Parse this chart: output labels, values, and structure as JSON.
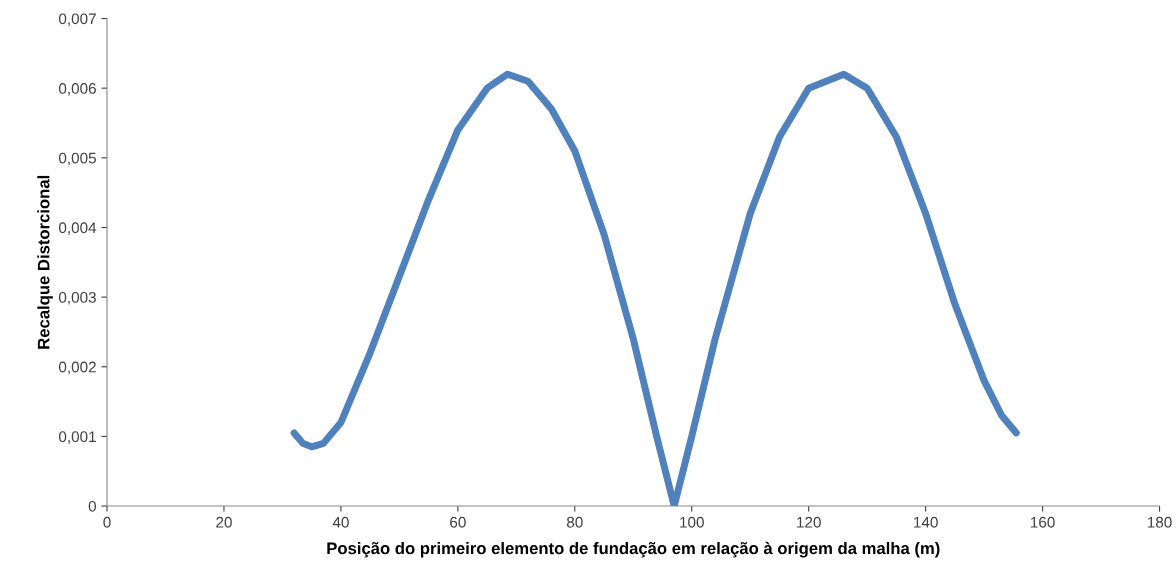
{
  "chart_data": {
    "type": "line",
    "xlabel": "Posição do primeiro elemento de fundação em relação à origem da malha (m)",
    "ylabel": "Recalque Distorcional",
    "x": [
      32,
      33.5,
      35,
      37,
      40,
      45,
      50,
      55,
      60,
      65,
      68.5,
      72,
      76,
      80,
      85,
      90,
      94,
      97,
      100,
      104,
      110,
      115,
      120,
      126,
      130,
      135,
      140,
      145,
      150,
      153,
      155.5
    ],
    "series": [
      {
        "color": "#4f81bd",
        "values": [
          0.00105,
          0.0009,
          0.00085,
          0.0009,
          0.0012,
          0.0022,
          0.0033,
          0.0044,
          0.0054,
          0.006,
          0.0062,
          0.0061,
          0.0057,
          0.0051,
          0.0039,
          0.0024,
          0.001,
          0,
          0.001,
          0.0024,
          0.0042,
          0.0053,
          0.006,
          0.0062,
          0.006,
          0.0053,
          0.0042,
          0.0029,
          0.0018,
          0.0013,
          0.00105
        ]
      }
    ],
    "xlim": [
      0,
      180
    ],
    "xticks": [
      0,
      20,
      40,
      60,
      80,
      100,
      120,
      140,
      160,
      180
    ],
    "ylim": [
      0,
      0.007
    ],
    "yticks": [
      0,
      {
        "value": 0.001,
        "label": "0,001"
      },
      {
        "value": 0.002,
        "label": "0,002"
      },
      {
        "value": 0.003,
        "label": "0,003"
      },
      {
        "value": 0.004,
        "label": "0,004"
      },
      {
        "value": 0.005,
        "label": "0,005"
      },
      {
        "value": 0.006,
        "label": "0,006"
      },
      {
        "value": 0.007,
        "label": "0,007"
      }
    ],
    "grid": false,
    "legend": false,
    "marker": "none",
    "line_style": "solid"
  }
}
